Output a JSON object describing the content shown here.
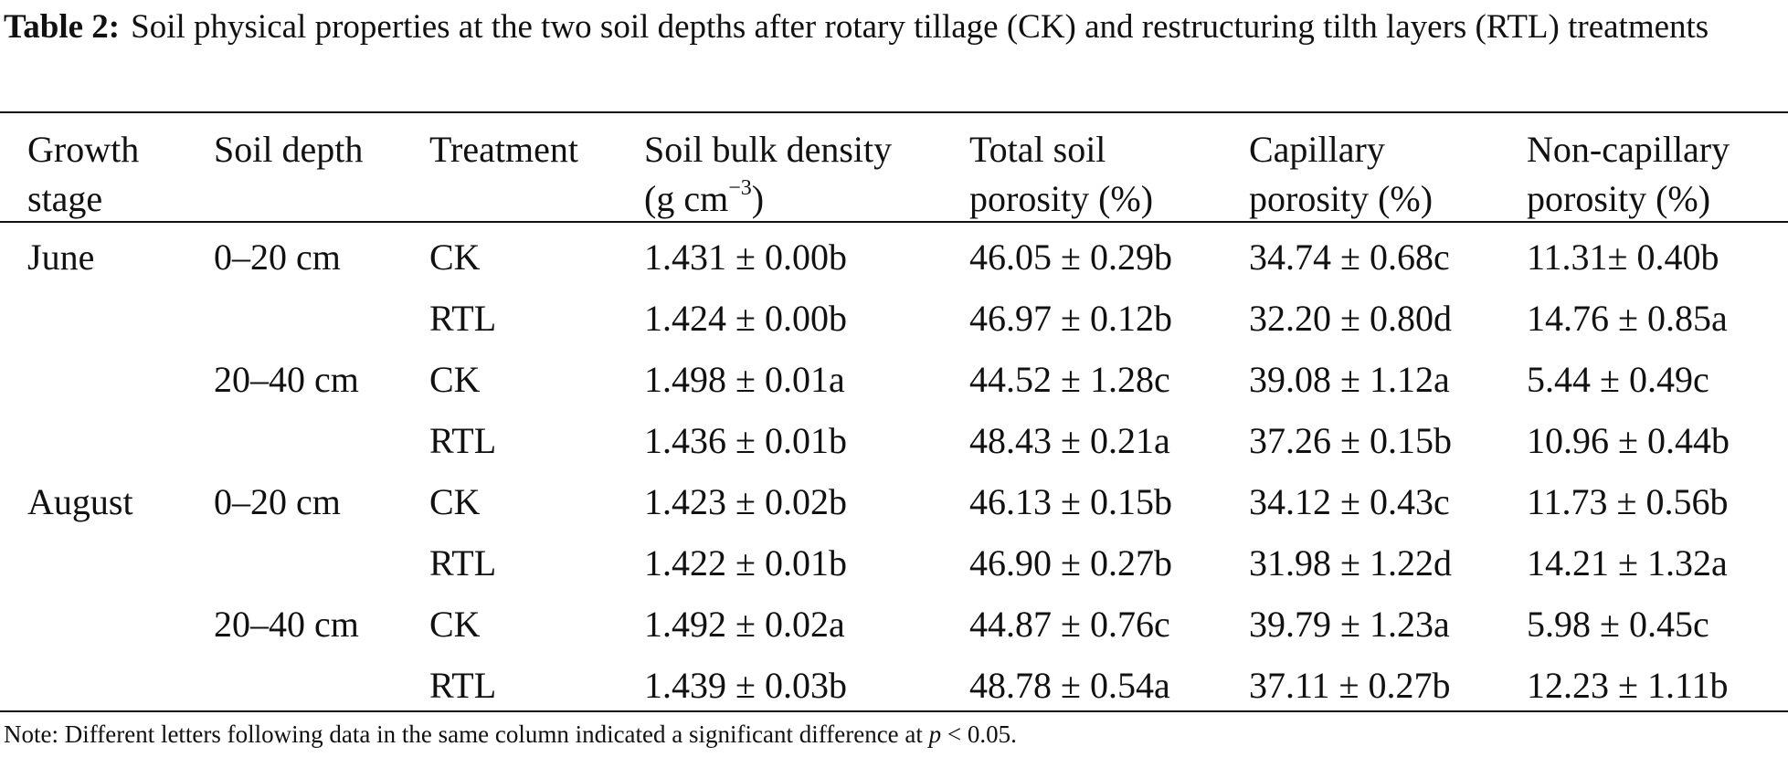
{
  "caption": {
    "label": "Table 2:",
    "text": "Soil physical properties at the two soil depths after rotary tillage (CK) and restructuring tilth layers (RTL) treatments"
  },
  "headers": {
    "growth_stage": [
      "Growth",
      "stage"
    ],
    "soil_depth": "Soil depth",
    "treatment": "Treatment",
    "bulk_density": [
      "Soil bulk density",
      "(g cm",
      "−3",
      ")"
    ],
    "total_porosity": [
      "Total soil",
      "porosity (%)"
    ],
    "capillary": [
      "Capillary",
      "porosity (%)"
    ],
    "non_capillary": [
      "Non-capillary",
      "porosity (%)"
    ]
  },
  "rows": [
    {
      "stage": "June",
      "depth": "0–20 cm",
      "treatment": "CK",
      "bulk_density": "1.431 ± 0.00b",
      "total_porosity": "46.05 ± 0.29b",
      "capillary": "34.74 ± 0.68c",
      "non_capillary": "11.31± 0.40b"
    },
    {
      "stage": "",
      "depth": "",
      "treatment": "RTL",
      "bulk_density": "1.424 ± 0.00b",
      "total_porosity": "46.97 ± 0.12b",
      "capillary": "32.20 ± 0.80d",
      "non_capillary": "14.76 ± 0.85a"
    },
    {
      "stage": "",
      "depth": "20–40 cm",
      "treatment": "CK",
      "bulk_density": "1.498 ± 0.01a",
      "total_porosity": "44.52 ± 1.28c",
      "capillary": "39.08 ± 1.12a",
      "non_capillary": "5.44 ± 0.49c"
    },
    {
      "stage": "",
      "depth": "",
      "treatment": "RTL",
      "bulk_density": "1.436 ± 0.01b",
      "total_porosity": "48.43 ± 0.21a",
      "capillary": "37.26 ± 0.15b",
      "non_capillary": "10.96 ± 0.44b"
    },
    {
      "stage": "August",
      "depth": "0–20 cm",
      "treatment": "CK",
      "bulk_density": "1.423 ± 0.02b",
      "total_porosity": "46.13 ± 0.15b",
      "capillary": "34.12 ± 0.43c",
      "non_capillary": "11.73 ± 0.56b"
    },
    {
      "stage": "",
      "depth": "",
      "treatment": "RTL",
      "bulk_density": "1.422 ± 0.01b",
      "total_porosity": "46.90 ± 0.27b",
      "capillary": "31.98 ± 1.22d",
      "non_capillary": "14.21 ± 1.32a"
    },
    {
      "stage": "",
      "depth": "20–40 cm",
      "treatment": "CK",
      "bulk_density": "1.492 ± 0.02a",
      "total_porosity": "44.87 ± 0.76c",
      "capillary": "39.79 ± 1.23a",
      "non_capillary": "5.98 ± 0.45c"
    },
    {
      "stage": "",
      "depth": "",
      "treatment": "RTL",
      "bulk_density": "1.439 ± 0.03b",
      "total_porosity": "48.78 ± 0.54a",
      "capillary": "37.11 ± 0.27b",
      "non_capillary": "12.23 ± 1.11b"
    }
  ],
  "note": {
    "prefix": "Note: Different letters following data in the same column indicated a significant difference at",
    "p_symbol": "p",
    "suffix": "< 0.05."
  }
}
